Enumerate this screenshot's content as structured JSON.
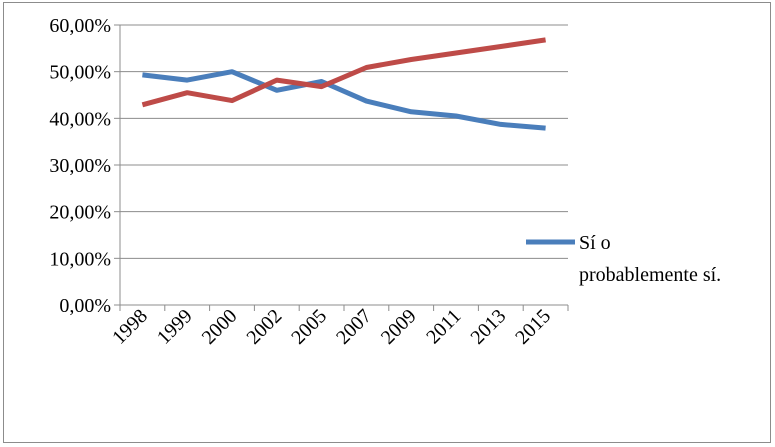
{
  "chart_data": {
    "type": "line",
    "title": "",
    "xlabel": "",
    "ylabel": "",
    "categories": [
      "1998",
      "1999",
      "2000",
      "2002",
      "2005",
      "2007",
      "2009",
      "2011",
      "2013",
      "2015"
    ],
    "y_ticks": [
      "0,00%",
      "10,00%",
      "20,00%",
      "30,00%",
      "40,00%",
      "50,00%",
      "60,00%"
    ],
    "ylim": [
      0,
      60
    ],
    "grid": true,
    "legend_position": "right",
    "series": [
      {
        "name": "Sí o probablemente sí.",
        "legend_lines": [
          "Sí o",
          "probablemente sí."
        ],
        "color": "#4a7ebb",
        "values": [
          49.3,
          48.2,
          50.0,
          46.0,
          47.9,
          43.7,
          41.4,
          40.5,
          38.7,
          37.9
        ]
      },
      {
        "color": "#be4b48",
        "values": [
          42.9,
          45.5,
          43.8,
          48.2,
          46.8,
          50.9,
          52.6,
          54.0,
          55.4,
          56.8
        ]
      }
    ]
  }
}
